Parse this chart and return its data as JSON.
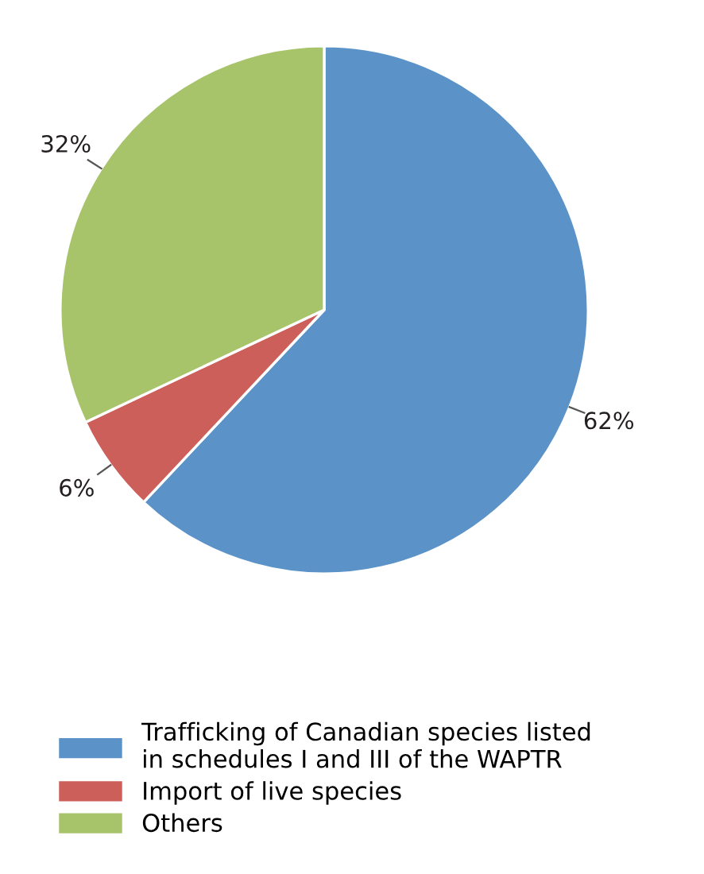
{
  "chart_data": {
    "type": "pie",
    "categories": [
      "Trafficking of Canadian species listed\nin schedules I and III of the WAPTR",
      "Import of live species",
      "Others"
    ],
    "values": [
      62,
      6,
      32
    ],
    "value_labels": [
      "62%",
      "6%",
      "32%"
    ],
    "colors": [
      "#5b93c8",
      "#cc5f5a",
      "#a7c46a"
    ],
    "legend": "bottom"
  }
}
